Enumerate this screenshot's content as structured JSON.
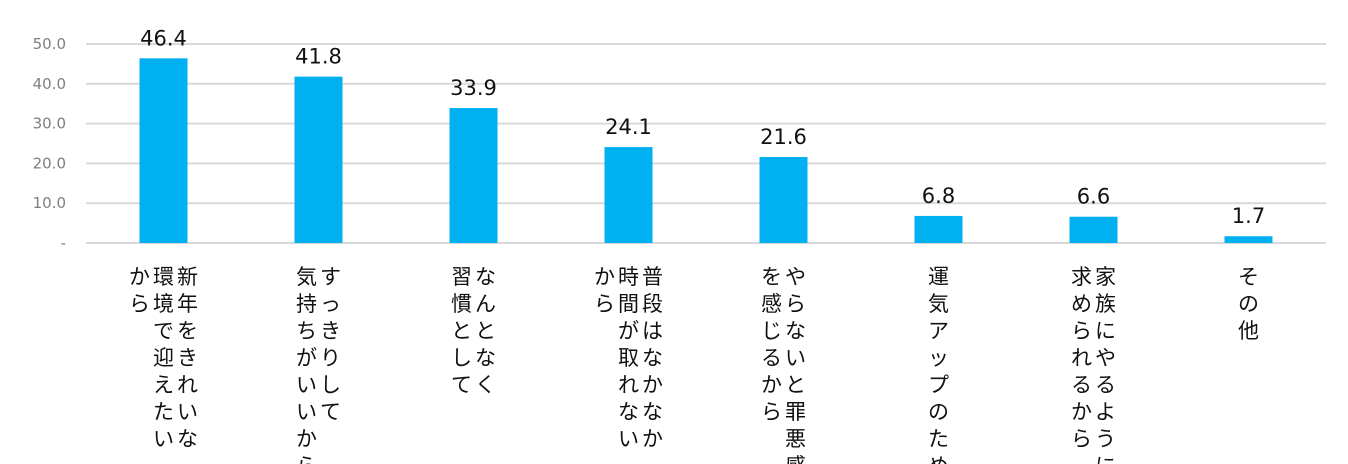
{
  "chart_data": {
    "type": "bar",
    "categories": [
      "新年をきれいな環境で迎えたいから",
      "すっきりして気持ちがいいから",
      "なんとなく習慣として",
      "普段はなかなか時間が取れないから",
      "やらないと罪悪感を感じるから",
      "運気アップのため",
      "家族にやるように求められるから",
      "その他"
    ],
    "category_lines": [
      [
        "新年をきれいな",
        "環境で迎えたい",
        "から"
      ],
      [
        "すっきりして",
        "気持ちがいいから"
      ],
      [
        "なんとなく",
        "習慣として"
      ],
      [
        "普段はなかなか",
        "時間が取れない",
        "から"
      ],
      [
        "やらないと罪悪感",
        "を感じるから"
      ],
      [
        "運気アップのため"
      ],
      [
        "家族にやるように",
        "求められるから"
      ],
      [
        "その他"
      ]
    ],
    "values": [
      46.4,
      41.8,
      33.9,
      24.1,
      21.6,
      6.8,
      6.6,
      1.7
    ],
    "value_labels": [
      "46.4",
      "41.8",
      "33.9",
      "24.1",
      "21.6",
      "6.8",
      "6.6",
      "1.7"
    ],
    "yticks": [
      "-",
      "10.0",
      "20.0",
      "30.0",
      "40.0",
      "50.0"
    ],
    "ylim": [
      0,
      50
    ],
    "grid": true,
    "bar_color": "#00b0f0",
    "grid_color": "#d9d9d9",
    "title": "",
    "xlabel": "",
    "ylabel": ""
  }
}
